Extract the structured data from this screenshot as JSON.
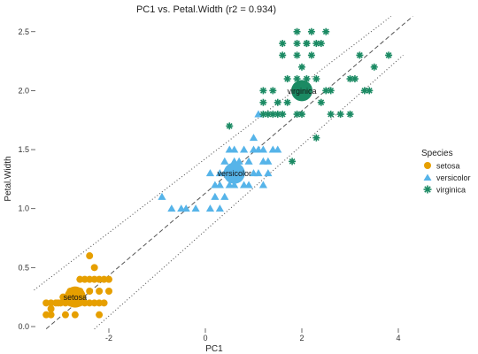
{
  "chart_data": {
    "type": "scatter",
    "title": "PC1 vs. Petal.Width (r2 = 0.934)",
    "xlabel": "PC1",
    "ylabel": "Petal.Width",
    "xlim": [
      -3.5,
      4.5
    ],
    "ylim": [
      -0.05,
      2.6
    ],
    "x_ticks": [
      -2,
      0,
      2,
      4
    ],
    "y_ticks": [
      0.0,
      0.5,
      1.0,
      1.5,
      2.0,
      2.5
    ],
    "x_tick_labels": [
      "-2",
      "0",
      "2",
      "4"
    ],
    "y_tick_labels": [
      "0.0",
      "0.5",
      "1.0",
      "1.5",
      "2.0",
      "2.5"
    ],
    "grid": false,
    "legend": {
      "title": "Species",
      "position": "right",
      "entries": [
        "setosa",
        "versicolor",
        "virginica"
      ]
    },
    "lines": [
      {
        "style": "dashed",
        "color": "#555555",
        "x": [
          -3.3,
          4.3
        ],
        "y": [
          -0.02,
          2.63
        ]
      },
      {
        "style": "dotted",
        "color": "#555555",
        "x": [
          -3.55,
          3.85
        ],
        "y": [
          0.31,
          2.63
        ]
      },
      {
        "style": "dotted",
        "color": "#555555",
        "x": [
          -2.3,
          4.1
        ],
        "y": [
          -0.02,
          2.3
        ]
      }
    ],
    "series": [
      {
        "name": "setosa",
        "color": "#E69F00",
        "marker": "circle",
        "centroid": {
          "x": -2.7,
          "y": 0.25,
          "label": "setosa"
        },
        "points": [
          [
            -3.2,
            0.2
          ],
          [
            -3.1,
            0.2
          ],
          [
            -3.05,
            0.2
          ],
          [
            -3.0,
            0.2
          ],
          [
            -2.9,
            0.2
          ],
          [
            -2.8,
            0.2
          ],
          [
            -2.7,
            0.2
          ],
          [
            -2.6,
            0.2
          ],
          [
            -2.5,
            0.2
          ],
          [
            -2.4,
            0.2
          ],
          [
            -2.3,
            0.2
          ],
          [
            -2.2,
            0.2
          ],
          [
            -2.1,
            0.2
          ],
          [
            -2.9,
            0.1
          ],
          [
            -2.7,
            0.1
          ],
          [
            -3.3,
            0.1
          ],
          [
            -3.2,
            0.1
          ],
          [
            -2.8,
            0.3
          ],
          [
            -2.6,
            0.3
          ],
          [
            -2.4,
            0.3
          ],
          [
            -2.2,
            0.3
          ],
          [
            -2.0,
            0.3
          ],
          [
            -2.5,
            0.4
          ],
          [
            -2.4,
            0.4
          ],
          [
            -2.3,
            0.4
          ],
          [
            -2.2,
            0.4
          ],
          [
            -2.1,
            0.4
          ],
          [
            -2.0,
            0.4
          ],
          [
            -2.6,
            0.4
          ],
          [
            -2.3,
            0.5
          ],
          [
            -2.4,
            0.6
          ],
          [
            -2.7,
            0.2
          ],
          [
            -3.2,
            0.15
          ],
          [
            -2.95,
            0.25
          ],
          [
            -3.3,
            0.2
          ],
          [
            -2.2,
            0.1
          ]
        ]
      },
      {
        "name": "versicolor",
        "color": "#56B4E9",
        "marker": "triangle",
        "centroid": {
          "x": 0.6,
          "y": 1.3,
          "label": "versicolor"
        },
        "points": [
          [
            -0.9,
            1.1
          ],
          [
            -0.7,
            1.0
          ],
          [
            -0.5,
            1.0
          ],
          [
            -0.2,
            1.0
          ],
          [
            0.1,
            1.0
          ],
          [
            0.2,
            1.1
          ],
          [
            0.4,
            1.1
          ],
          [
            0.3,
            1.0
          ],
          [
            -0.4,
            1.0
          ],
          [
            0.1,
            1.3
          ],
          [
            0.2,
            1.2
          ],
          [
            0.3,
            1.2
          ],
          [
            0.4,
            1.3
          ],
          [
            0.5,
            1.2
          ],
          [
            0.6,
            1.2
          ],
          [
            0.7,
            1.3
          ],
          [
            0.8,
            1.2
          ],
          [
            0.9,
            1.2
          ],
          [
            1.0,
            1.3
          ],
          [
            1.1,
            1.3
          ],
          [
            1.2,
            1.2
          ],
          [
            0.5,
            1.3
          ],
          [
            0.6,
            1.5
          ],
          [
            0.8,
            1.5
          ],
          [
            1.0,
            1.5
          ],
          [
            1.1,
            1.5
          ],
          [
            0.9,
            1.4
          ],
          [
            1.2,
            1.5
          ],
          [
            1.3,
            1.4
          ],
          [
            1.4,
            1.5
          ],
          [
            1.5,
            1.5
          ],
          [
            0.3,
            1.3
          ],
          [
            1.0,
            1.6
          ],
          [
            1.1,
            1.8
          ],
          [
            1.3,
            1.3
          ],
          [
            0.5,
            1.5
          ],
          [
            0.7,
            1.4
          ],
          [
            0.4,
            1.4
          ],
          [
            0.6,
            1.4
          ],
          [
            1.2,
            1.4
          ]
        ]
      },
      {
        "name": "virginica",
        "color": "#1B8A63",
        "marker": "asterisk",
        "centroid": {
          "x": 2.0,
          "y": 2.0,
          "label": "virginica"
        },
        "points": [
          [
            0.5,
            1.7
          ],
          [
            1.6,
            1.8
          ],
          [
            1.9,
            1.8
          ],
          [
            2.0,
            1.8
          ],
          [
            1.2,
            1.8
          ],
          [
            1.3,
            1.8
          ],
          [
            1.4,
            1.8
          ],
          [
            1.5,
            1.8
          ],
          [
            1.8,
            1.4
          ],
          [
            2.3,
            1.6
          ],
          [
            1.7,
            1.9
          ],
          [
            1.2,
            1.9
          ],
          [
            1.5,
            1.9
          ],
          [
            2.4,
            1.9
          ],
          [
            2.6,
            1.8
          ],
          [
            2.8,
            1.8
          ],
          [
            2.5,
            2.0
          ],
          [
            2.6,
            2.0
          ],
          [
            3.0,
            1.8
          ],
          [
            3.1,
            2.1
          ],
          [
            3.3,
            2.0
          ],
          [
            3.5,
            2.2
          ],
          [
            3.4,
            2.0
          ],
          [
            3.0,
            2.1
          ],
          [
            2.3,
            2.1
          ],
          [
            2.1,
            2.1
          ],
          [
            1.9,
            2.1
          ],
          [
            1.7,
            2.1
          ],
          [
            1.2,
            2.0
          ],
          [
            1.4,
            2.0
          ],
          [
            1.6,
            2.3
          ],
          [
            1.9,
            2.3
          ],
          [
            2.2,
            2.3
          ],
          [
            2.4,
            2.4
          ],
          [
            2.1,
            2.4
          ],
          [
            1.9,
            2.4
          ],
          [
            2.5,
            2.5
          ],
          [
            2.3,
            2.4
          ],
          [
            1.6,
            2.4
          ],
          [
            2.0,
            2.2
          ],
          [
            3.2,
            2.3
          ],
          [
            3.8,
            2.3
          ],
          [
            2.2,
            2.5
          ],
          [
            1.9,
            2.5
          ],
          [
            2.1,
            2.4
          ]
        ]
      }
    ]
  }
}
